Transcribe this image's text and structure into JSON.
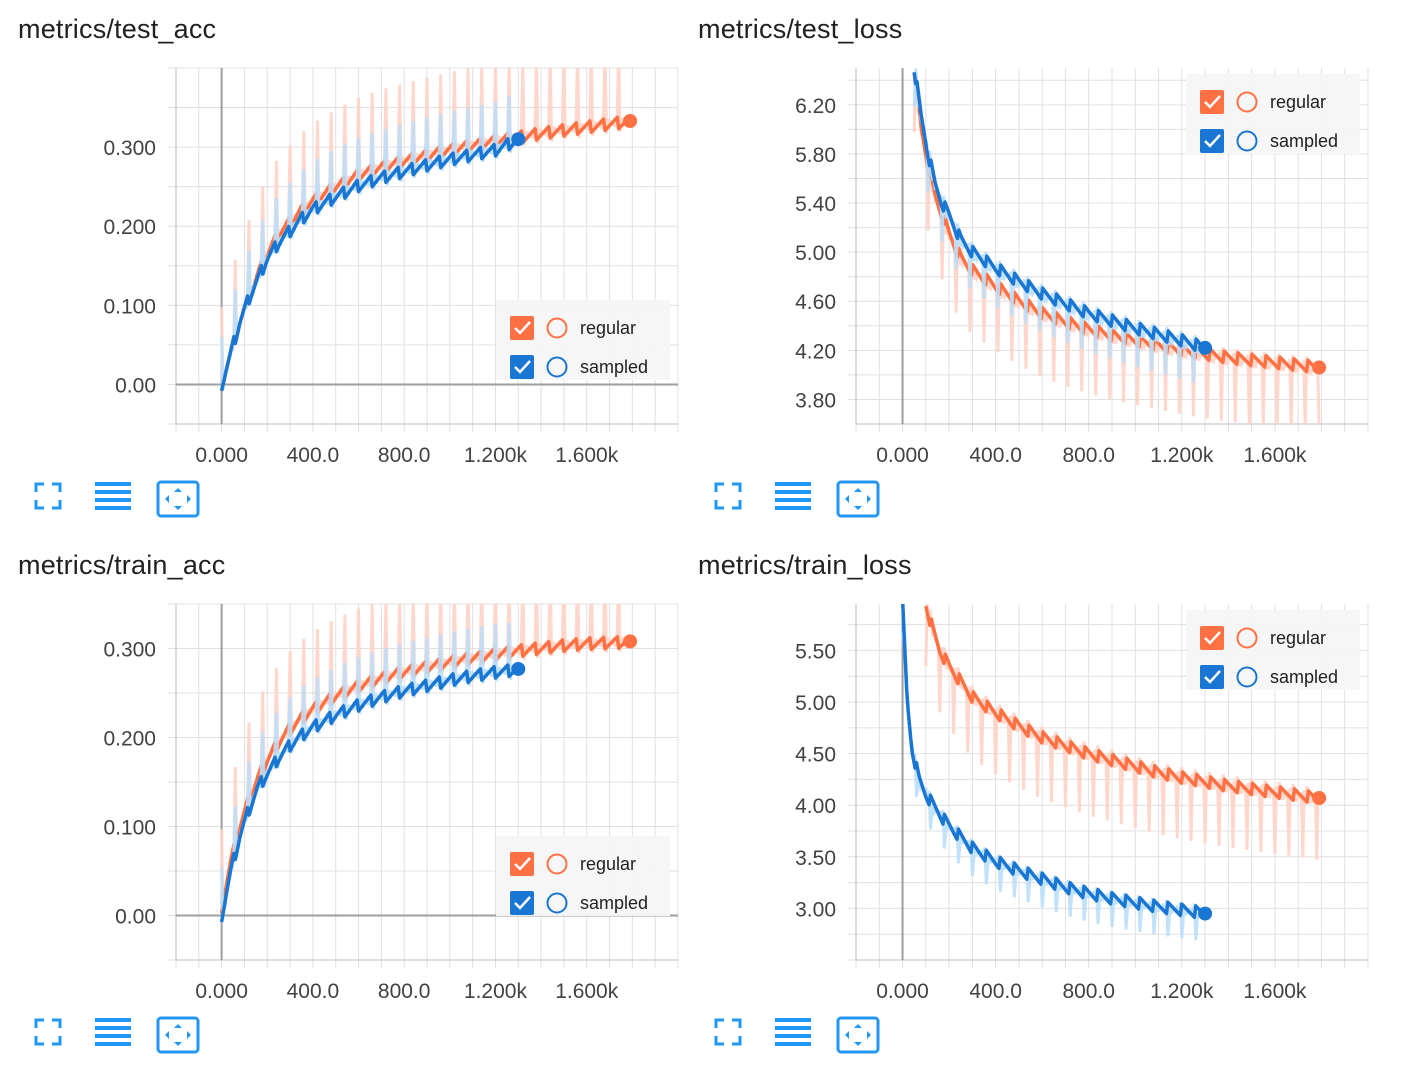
{
  "colors": {
    "regular": "#FF7043",
    "sampled": "#1976D2",
    "regular_light": "#FFD3C7",
    "sampled_light": "#BBDEFB",
    "icon_blue": "#2196F3"
  },
  "toolbar": {
    "icons": [
      "fullscreen-icon",
      "data-table-icon",
      "fit-domain-icon"
    ]
  },
  "charts": [
    {
      "title": "metrics/test_acc"
    },
    {
      "title": "metrics/test_loss"
    },
    {
      "title": "metrics/train_acc"
    },
    {
      "title": "metrics/train_loss"
    }
  ],
  "chart_data": [
    {
      "type": "line",
      "title": "metrics/test_acc",
      "xlim": [
        -200,
        2000
      ],
      "ylim": [
        -0.05,
        0.4
      ],
      "x_ticks": [
        "0.000",
        "400.0",
        "800.0",
        "1.200k",
        "1.600k"
      ],
      "y_ticks": [
        "0.00",
        "0.100",
        "0.200",
        "0.300"
      ],
      "legend": {
        "position": "bottom-right",
        "entries": [
          "regular",
          "sampled"
        ]
      },
      "series": [
        {
          "name": "regular",
          "x": [
            0,
            40,
            80,
            120,
            160,
            200,
            250,
            300,
            350,
            400,
            500,
            600,
            700,
            800,
            900,
            1000,
            1100,
            1200,
            1300,
            1400,
            1500,
            1600,
            1700,
            1790
          ],
          "values": [
            0.0,
            0.04,
            0.08,
            0.11,
            0.14,
            0.165,
            0.19,
            0.205,
            0.22,
            0.232,
            0.25,
            0.265,
            0.275,
            0.283,
            0.29,
            0.297,
            0.303,
            0.308,
            0.313,
            0.318,
            0.322,
            0.326,
            0.33,
            0.333
          ]
        },
        {
          "name": "sampled",
          "x": [
            0,
            40,
            80,
            120,
            160,
            200,
            250,
            300,
            350,
            400,
            500,
            600,
            700,
            800,
            900,
            1000,
            1100,
            1200,
            1300
          ],
          "values": [
            0.0,
            0.04,
            0.08,
            0.11,
            0.135,
            0.16,
            0.18,
            0.195,
            0.21,
            0.222,
            0.238,
            0.252,
            0.262,
            0.27,
            0.278,
            0.285,
            0.291,
            0.297,
            0.31
          ]
        }
      ]
    },
    {
      "type": "line",
      "title": "metrics/test_loss",
      "xlim": [
        -200,
        2000
      ],
      "ylim": [
        3.6,
        6.5
      ],
      "x_ticks": [
        "0.000",
        "400.0",
        "800.0",
        "1.200k",
        "1.600k"
      ],
      "y_ticks": [
        "3.80",
        "4.20",
        "4.60",
        "5.00",
        "5.40",
        "5.80",
        "6.20"
      ],
      "legend": {
        "position": "top-right",
        "entries": [
          "regular",
          "sampled"
        ]
      },
      "series": [
        {
          "name": "regular",
          "x": [
            50,
            80,
            110,
            140,
            170,
            200,
            250,
            300,
            400,
            500,
            600,
            700,
            800,
            900,
            1000,
            1100,
            1200,
            1300,
            1400,
            1500,
            1600,
            1700,
            1790
          ],
          "values": [
            6.5,
            6.0,
            5.7,
            5.45,
            5.3,
            5.15,
            4.95,
            4.85,
            4.72,
            4.6,
            4.5,
            4.43,
            4.37,
            4.32,
            4.28,
            4.24,
            4.2,
            4.17,
            4.14,
            4.12,
            4.1,
            4.08,
            4.06
          ]
        },
        {
          "name": "sampled",
          "x": [
            50,
            80,
            110,
            140,
            170,
            200,
            250,
            300,
            400,
            500,
            600,
            700,
            800,
            900,
            1000,
            1100,
            1200,
            1300
          ],
          "values": [
            6.5,
            6.1,
            5.8,
            5.55,
            5.4,
            5.3,
            5.1,
            5.0,
            4.87,
            4.76,
            4.66,
            4.58,
            4.5,
            4.44,
            4.38,
            4.33,
            4.28,
            4.22
          ]
        }
      ]
    },
    {
      "type": "line",
      "title": "metrics/train_acc",
      "xlim": [
        -200,
        2000
      ],
      "ylim": [
        -0.05,
        0.35
      ],
      "x_ticks": [
        "0.000",
        "400.0",
        "800.0",
        "1.200k",
        "1.600k"
      ],
      "y_ticks": [
        "0.00",
        "0.100",
        "0.200",
        "0.300"
      ],
      "legend": {
        "position": "bottom-right",
        "entries": [
          "regular",
          "sampled"
        ]
      },
      "series": [
        {
          "name": "regular",
          "x": [
            0,
            40,
            80,
            120,
            160,
            200,
            250,
            300,
            350,
            400,
            500,
            600,
            700,
            800,
            900,
            1000,
            1100,
            1200,
            1300,
            1400,
            1500,
            1600,
            1700,
            1790
          ],
          "values": [
            0.01,
            0.06,
            0.1,
            0.13,
            0.155,
            0.175,
            0.195,
            0.21,
            0.222,
            0.232,
            0.247,
            0.258,
            0.267,
            0.274,
            0.28,
            0.285,
            0.29,
            0.294,
            0.298,
            0.301,
            0.304,
            0.306,
            0.307,
            0.308
          ]
        },
        {
          "name": "sampled",
          "x": [
            0,
            40,
            80,
            120,
            160,
            200,
            250,
            300,
            350,
            400,
            500,
            600,
            700,
            800,
            900,
            1000,
            1100,
            1200,
            1300
          ],
          "values": [
            0.0,
            0.05,
            0.09,
            0.12,
            0.145,
            0.16,
            0.178,
            0.192,
            0.203,
            0.212,
            0.226,
            0.237,
            0.246,
            0.253,
            0.259,
            0.265,
            0.27,
            0.274,
            0.277
          ]
        }
      ]
    },
    {
      "type": "line",
      "title": "metrics/train_loss",
      "xlim": [
        -200,
        2000
      ],
      "ylim": [
        2.5,
        5.95
      ],
      "x_ticks": [
        "0.000",
        "400.0",
        "800.0",
        "1.200k",
        "1.600k"
      ],
      "y_ticks": [
        "3.00",
        "3.50",
        "4.00",
        "4.50",
        "5.00",
        "5.50"
      ],
      "legend": {
        "position": "top-right",
        "entries": [
          "regular",
          "sampled"
        ]
      },
      "series": [
        {
          "name": "regular",
          "x": [
            100,
            130,
            160,
            200,
            250,
            300,
            400,
            500,
            600,
            700,
            800,
            900,
            1000,
            1100,
            1200,
            1300,
            1400,
            1500,
            1600,
            1700,
            1790
          ],
          "values": [
            5.95,
            5.7,
            5.5,
            5.35,
            5.2,
            5.05,
            4.9,
            4.77,
            4.66,
            4.58,
            4.5,
            4.44,
            4.38,
            4.32,
            4.27,
            4.23,
            4.19,
            4.16,
            4.13,
            4.1,
            4.07
          ]
        },
        {
          "name": "sampled",
          "x": [
            0,
            20,
            40,
            70,
            100,
            140,
            180,
            220,
            300,
            400,
            500,
            600,
            700,
            800,
            900,
            1000,
            1100,
            1200,
            1300
          ],
          "values": [
            5.95,
            5.0,
            4.55,
            4.25,
            4.1,
            3.97,
            3.85,
            3.75,
            3.58,
            3.45,
            3.36,
            3.28,
            3.2,
            3.14,
            3.09,
            3.05,
            3.01,
            2.98,
            2.95
          ]
        }
      ]
    }
  ]
}
